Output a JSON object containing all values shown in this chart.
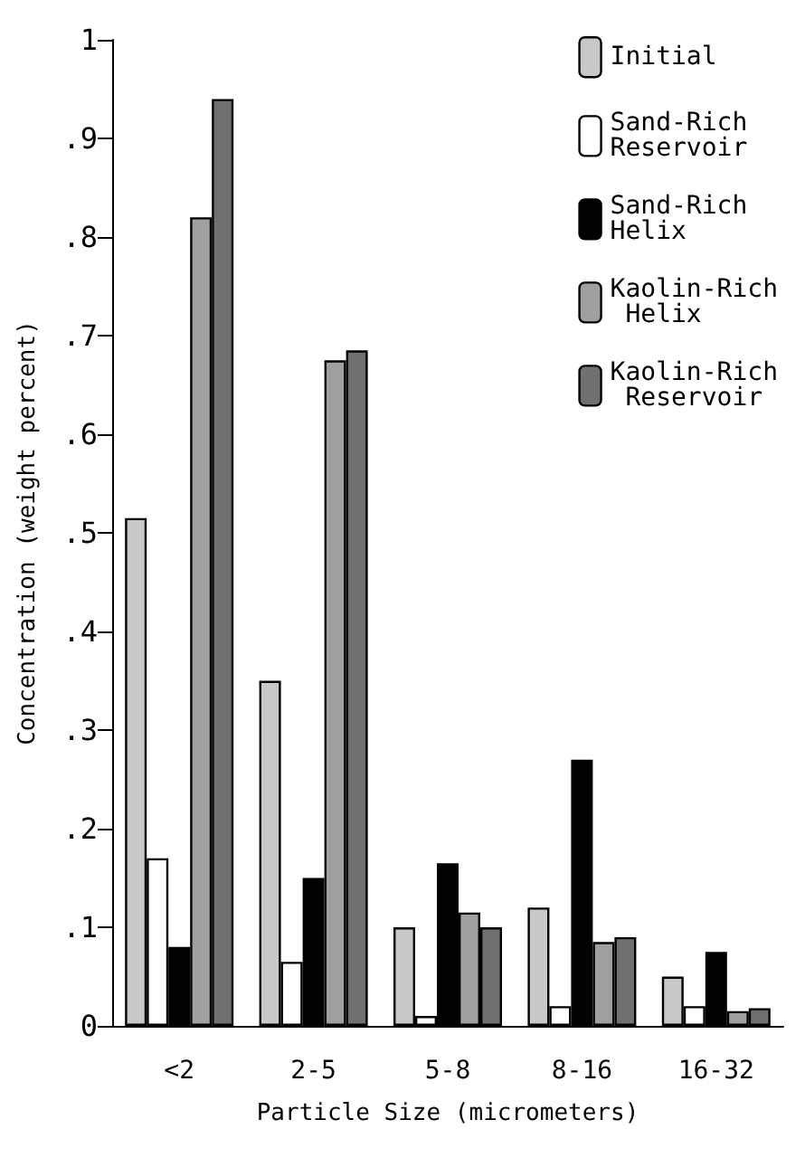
{
  "chart_data": {
    "type": "bar",
    "xlabel": "Particle Size (micrometers)",
    "ylabel": "Concentration (weight percent)",
    "categories": [
      "<2",
      "2-5",
      "5-8",
      "8-16",
      "16-32"
    ],
    "series": [
      {
        "name": "Initial",
        "color": "#c8c8c8",
        "values": [
          0.515,
          0.35,
          0.1,
          0.12,
          0.05
        ]
      },
      {
        "name": "Sand-Rich Reservoir",
        "color": "#ffffff",
        "values": [
          0.17,
          0.065,
          0.01,
          0.02,
          0.02
        ]
      },
      {
        "name": "Sand-Rich Helix",
        "color": "#000000",
        "values": [
          0.08,
          0.15,
          0.165,
          0.27,
          0.075
        ]
      },
      {
        "name": "Kaolin-Rich Helix",
        "color": "#a0a0a0",
        "values": [
          0.82,
          0.675,
          0.115,
          0.085,
          0.015
        ]
      },
      {
        "name": "Kaolin-Rich Reservoir",
        "color": "#707070",
        "values": [
          0.94,
          0.685,
          0.1,
          0.09,
          0.018
        ]
      }
    ],
    "ylim": [
      0,
      1
    ],
    "yticks": [
      {
        "value": 0,
        "label": "0"
      },
      {
        "value": 0.1,
        "label": ".1"
      },
      {
        "value": 0.2,
        "label": ".2"
      },
      {
        "value": 0.3,
        "label": ".3"
      },
      {
        "value": 0.4,
        "label": ".4"
      },
      {
        "value": 0.5,
        "label": ".5"
      },
      {
        "value": 0.6,
        "label": ".6"
      },
      {
        "value": 0.7,
        "label": ".7"
      },
      {
        "value": 0.8,
        "label": ".8"
      },
      {
        "value": 0.9,
        "label": ".9"
      },
      {
        "value": 1,
        "label": "1"
      }
    ],
    "grid": false,
    "legend": "top right"
  }
}
